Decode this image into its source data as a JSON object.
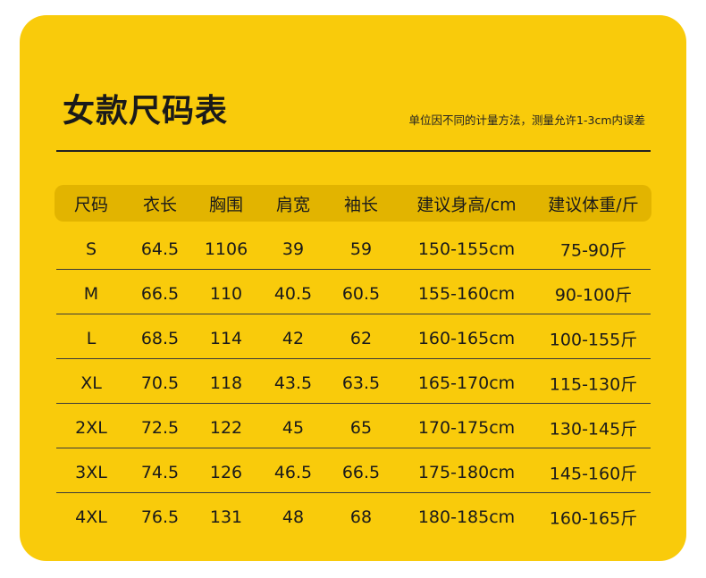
{
  "header": {
    "title": "女款尺码表",
    "note": "单位因不同的计量方法，测量允许1-3cm内误差"
  },
  "table": {
    "columns": [
      "尺码",
      "衣长",
      "胸围",
      "肩宽",
      "袖长",
      "建议身高/cm",
      "建议体重/斤"
    ],
    "rows": [
      [
        "S",
        "64.5",
        "1106",
        "39",
        "59",
        "150-155cm",
        "75-90斤"
      ],
      [
        "M",
        "66.5",
        "110",
        "40.5",
        "60.5",
        "155-160cm",
        "90-100斤"
      ],
      [
        "L",
        "68.5",
        "114",
        "42",
        "62",
        "160-165cm",
        "100-155斤"
      ],
      [
        "XL",
        "70.5",
        "118",
        "43.5",
        "63.5",
        "165-170cm",
        "115-130斤"
      ],
      [
        "2XL",
        "72.5",
        "122",
        "45",
        "65",
        "170-175cm",
        "130-145斤"
      ],
      [
        "3XL",
        "74.5",
        "126",
        "46.5",
        "66.5",
        "175-180cm",
        "145-160斤"
      ],
      [
        "4XL",
        "76.5",
        "131",
        "48",
        "68",
        "180-185cm",
        "160-165斤"
      ]
    ]
  }
}
